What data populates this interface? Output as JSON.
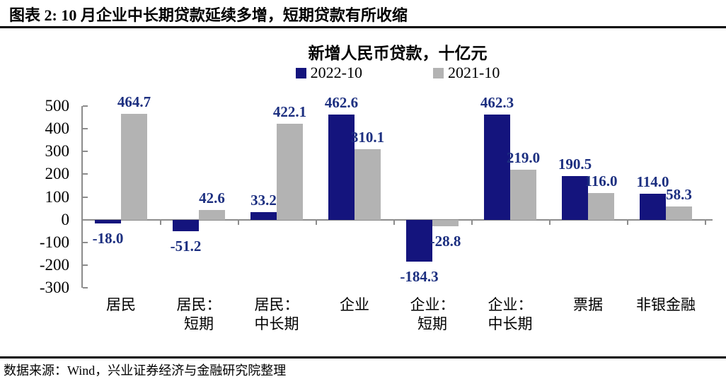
{
  "header": {
    "title": "图表 2: 10 月企业中长期贷款延续多增，短期贷款有所收缩"
  },
  "footer": {
    "source": "数据来源：Wind，兴业证券经济与金融研究院整理"
  },
  "colors": {
    "navy_bar": "#14147D",
    "gray_bar": "#B3B3B3",
    "value_label": "#1C2F80",
    "axis": "#8C8C8C",
    "rule": "#000000"
  },
  "chart_data": {
    "type": "bar",
    "title": "新增人民币贷款，十亿元",
    "categories": [
      [
        "居民"
      ],
      [
        "居民：",
        "短期"
      ],
      [
        "居民：",
        "中长期"
      ],
      [
        "企业"
      ],
      [
        "企业：",
        "短期"
      ],
      [
        "企业：",
        "中长期"
      ],
      [
        "票据"
      ],
      [
        "非银金融"
      ]
    ],
    "series": [
      {
        "name": "2022-10",
        "color": "#14147D",
        "values": [
          -18.0,
          -51.2,
          33.2,
          462.6,
          -184.3,
          462.3,
          190.5,
          114.0
        ]
      },
      {
        "name": "2021-10",
        "color": "#B3B3B3",
        "values": [
          464.7,
          42.6,
          422.1,
          310.1,
          -28.8,
          219.0,
          116.0,
          58.3
        ]
      }
    ],
    "value_labels_decimals": 1,
    "ylim": [
      -300,
      500
    ],
    "yticks": [
      500,
      400,
      300,
      200,
      100,
      0,
      -100,
      -200,
      -300
    ],
    "legend_position": "top-center",
    "grid": false
  }
}
